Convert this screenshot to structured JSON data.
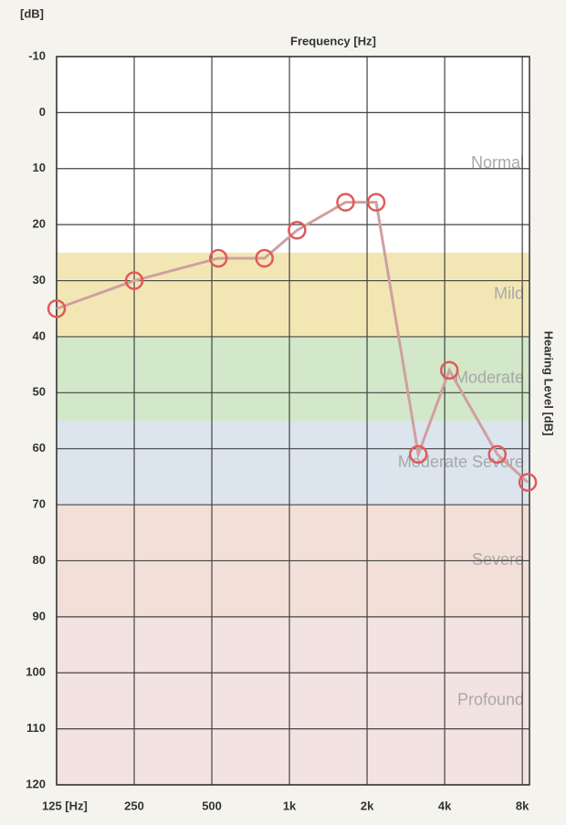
{
  "chart_data": {
    "type": "line",
    "title": "Frequency [Hz]",
    "y_unit": "[dB]",
    "y2_title": "Hearing Level [dB]",
    "x": [
      125,
      250,
      530,
      800,
      1070,
      1650,
      2170,
      3160,
      4170,
      6400,
      8400
    ],
    "series": [
      {
        "name": "Hearing Level",
        "color": "#e05a5a",
        "line_color": "#cfa0a0",
        "values": [
          35,
          30,
          26,
          26,
          21,
          16,
          16,
          61,
          46,
          61,
          66
        ]
      }
    ],
    "bands": [
      {
        "name": "Normal",
        "from": -10,
        "to": 25,
        "color": "#ffffff"
      },
      {
        "name": "Mild",
        "from": 25,
        "to": 40,
        "color": "#f2e7b4"
      },
      {
        "name": "Moderate",
        "from": 40,
        "to": 55,
        "color": "#d2e8c8"
      },
      {
        "name": "Moderate Severe",
        "from": 55,
        "to": 70,
        "color": "#dce4ee"
      },
      {
        "name": "Severe",
        "from": 70,
        "to": 90,
        "color": "#f2dfd8"
      },
      {
        "name": "Profound",
        "from": 90,
        "to": 120,
        "color": "#f2e2e2"
      }
    ],
    "xlim": [
      125,
      8530
    ],
    "xticks": [
      {
        "value": 125,
        "label": "125 [Hz]"
      },
      250,
      500,
      {
        "value": 1000,
        "label": "1k"
      },
      {
        "value": 2000,
        "label": "2k"
      },
      {
        "value": 4000,
        "label": "4k"
      },
      {
        "value": 8000,
        "label": "8k"
      }
    ],
    "log_x": true,
    "ylim": [
      -10,
      120
    ],
    "yticks": [
      -10,
      0,
      10,
      20,
      30,
      40,
      50,
      60,
      70,
      80,
      90,
      100,
      110,
      120
    ],
    "y_inverted": true,
    "grid": true
  }
}
